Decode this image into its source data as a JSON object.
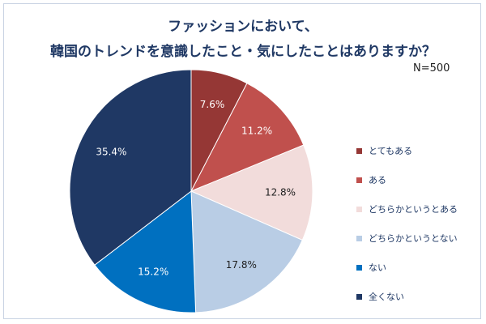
{
  "chart_data": {
    "type": "pie",
    "title": [
      "ファッションにおいて、",
      "韓国のトレンドを意識したこと・気にしたことはありますか？"
    ],
    "annotation": "N=500",
    "unit": "%",
    "start_angle_deg": 0,
    "direction": "clockwise",
    "legend_position": "right",
    "categories": [
      "とてもある",
      "ある",
      "どちらかというとある",
      "どちらかというとない",
      "ない",
      "全くない"
    ],
    "values": [
      7.6,
      11.2,
      12.8,
      17.8,
      15.2,
      35.4
    ],
    "labels": [
      "7.6%",
      "11.2%",
      "12.8%",
      "17.8%",
      "15.2%",
      "35.4%"
    ],
    "colors": [
      "#953735",
      "#c0504d",
      "#f2dcdb",
      "#b9cde5",
      "#0070c0",
      "#1f3864"
    ],
    "label_colors": [
      "#ffffff",
      "#ffffff",
      "#1f1f1f",
      "#1f1f1f",
      "#ffffff",
      "#ffffff"
    ]
  }
}
